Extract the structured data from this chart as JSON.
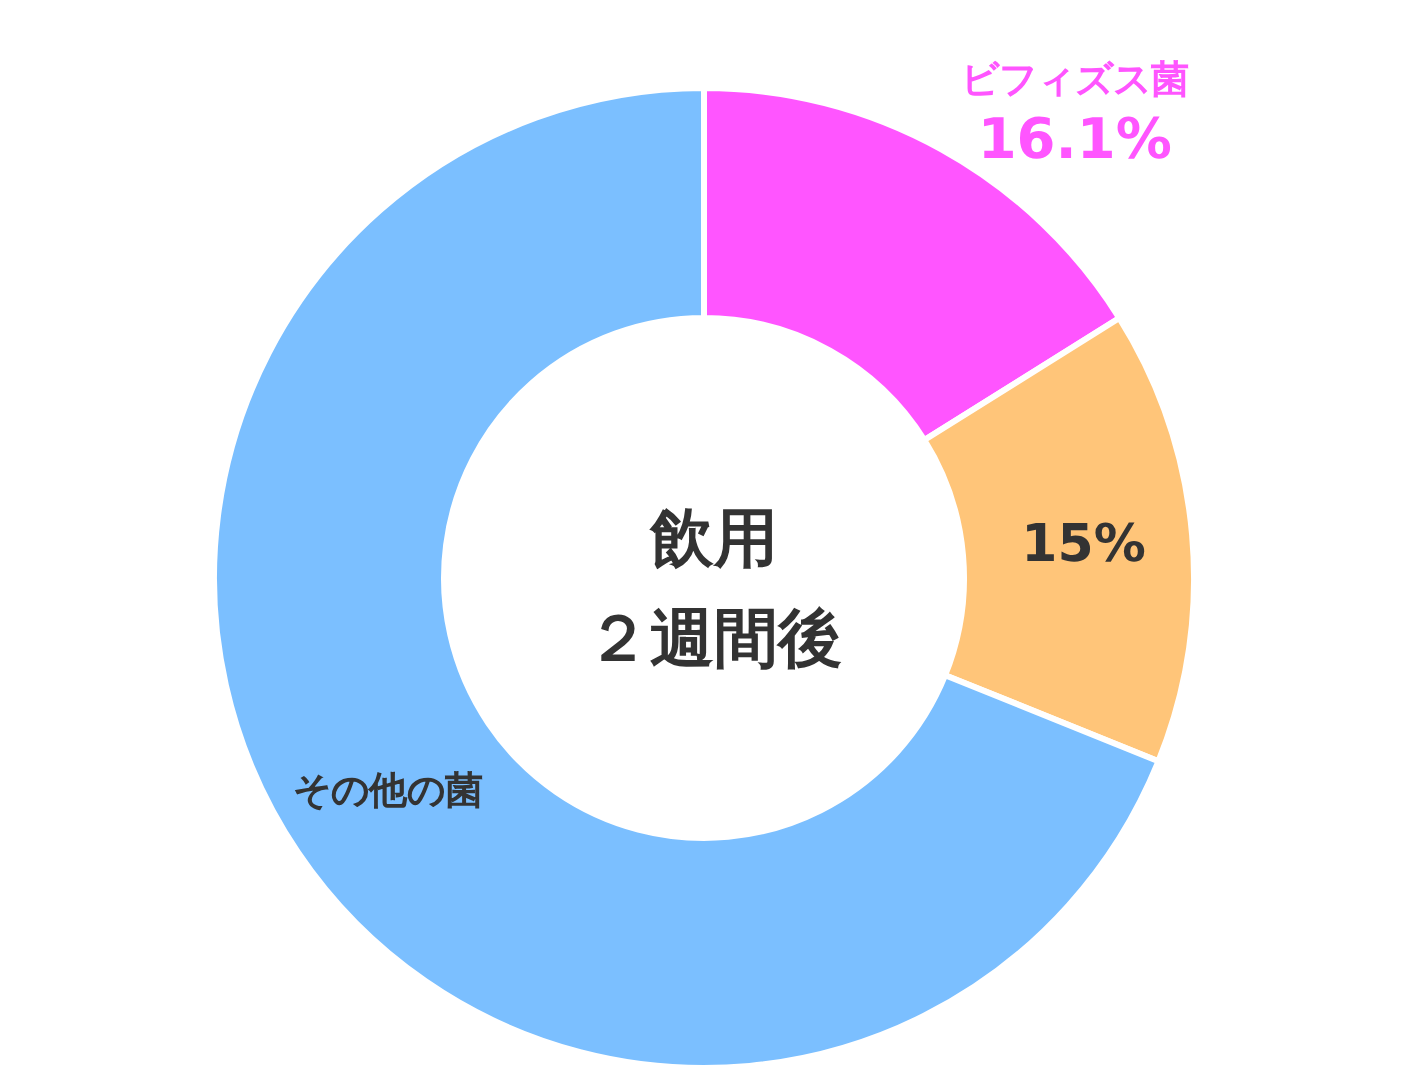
{
  "chart_data": {
    "type": "donut",
    "title": "飲用２週間後",
    "categories": [
      "ビフィズス菌",
      null,
      "その他の菌"
    ],
    "values": [
      16.1,
      15,
      68.9
    ],
    "colors": [
      "#ff55ff",
      "#ffc579",
      "#7bbfff"
    ],
    "value_labels": [
      "16.1%",
      "15%",
      null
    ],
    "legend": false
  }
}
